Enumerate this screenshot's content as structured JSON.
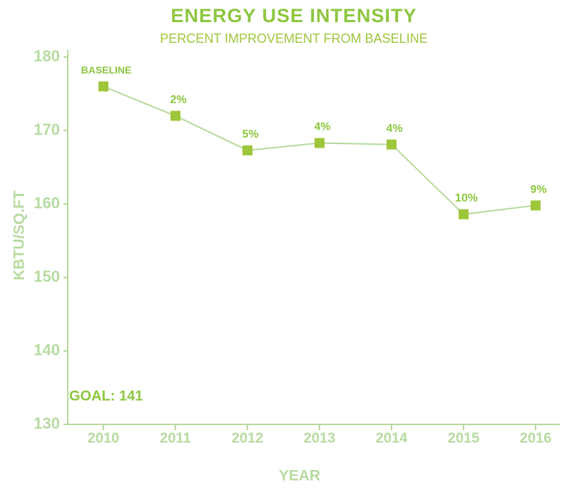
{
  "chart_data": {
    "type": "line",
    "title": "ENERGY USE INTENSITY",
    "subtitle": "PERCENT IMPROVEMENT FROM BASELINE",
    "x_label": "YEAR",
    "y_label": "KBTU/SQ.FT",
    "categories": [
      "2010",
      "2011",
      "2012",
      "2013",
      "2014",
      "2015",
      "2016"
    ],
    "series": [
      {
        "name": "Energy use intensity",
        "color": "#9dc63b",
        "values": [
          176,
          172,
          167.3,
          168.3,
          168.1,
          158.6,
          159.8
        ]
      }
    ],
    "point_annotations": [
      "BASELINE",
      "2%",
      "5%",
      "4%",
      "4%",
      "10%",
      "9%"
    ],
    "annotation": "GOAL: 141",
    "line_color": "#b5d99c",
    "ylim": [
      130,
      180
    ],
    "yticks": [
      130,
      140,
      150,
      160,
      170,
      180
    ],
    "grid": false
  }
}
